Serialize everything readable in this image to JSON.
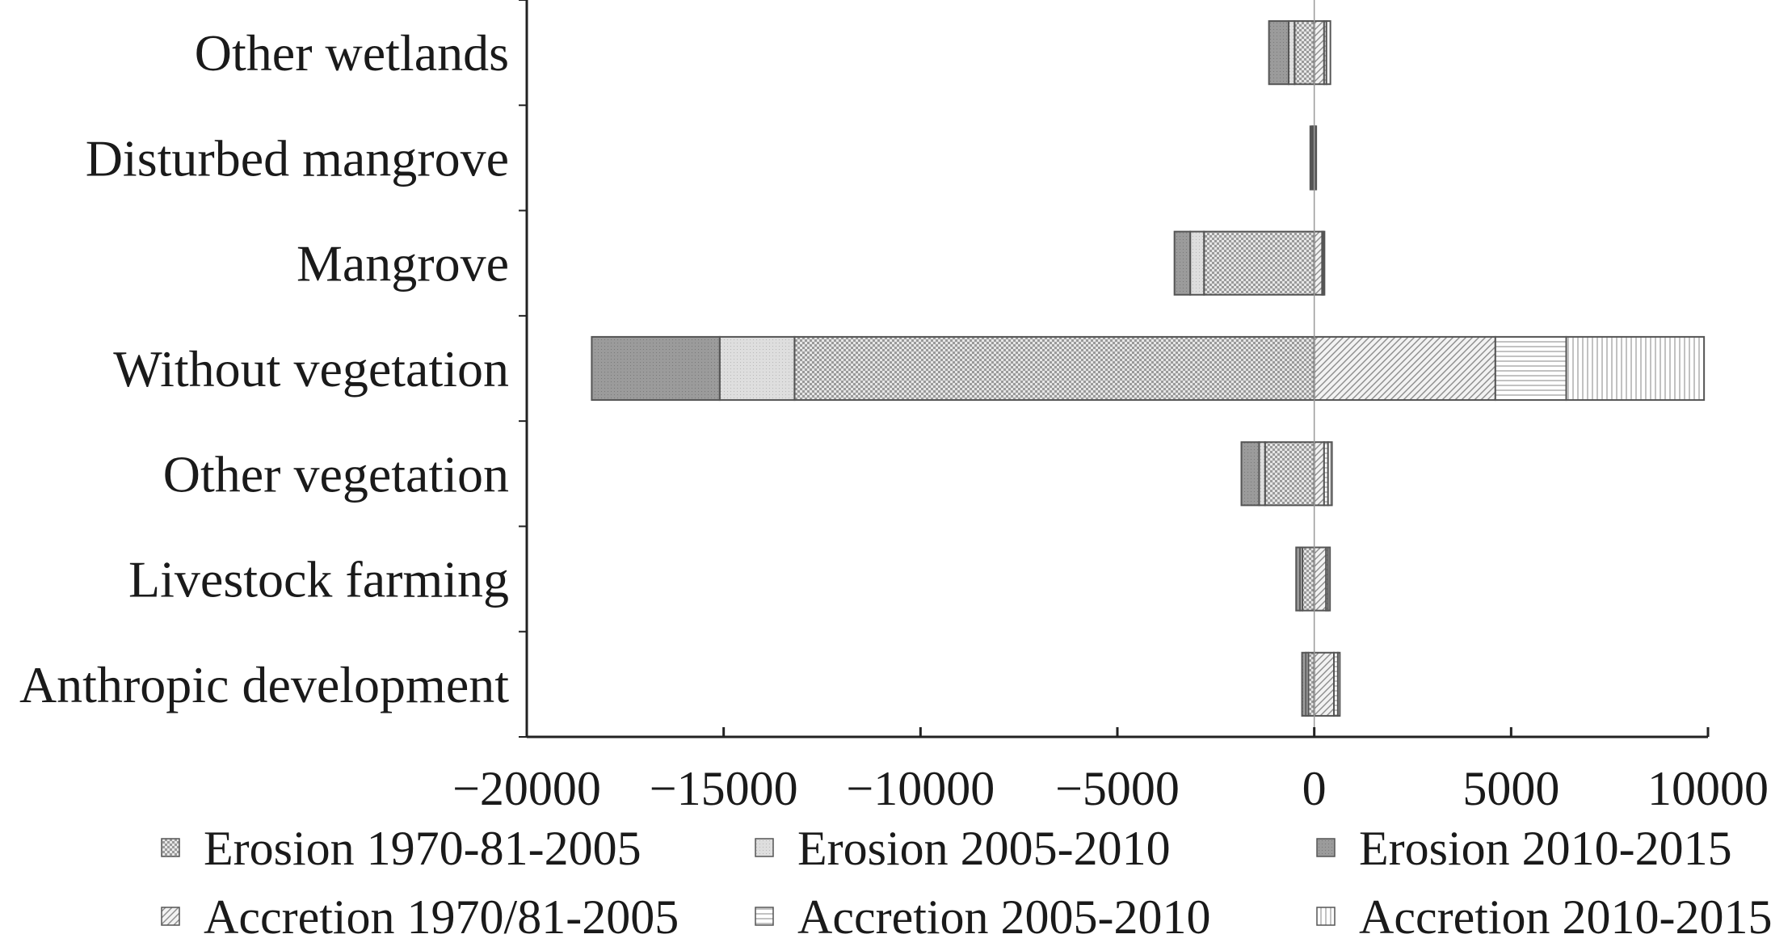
{
  "chart_data": {
    "type": "bar",
    "orientation": "horizontal",
    "stacked": true,
    "categories": [
      "Other wetlands",
      "Disturbed mangrove",
      "Mangrove",
      "Without vegetation",
      "Other vegetation",
      "Livestock farming",
      "Anthropic development"
    ],
    "xlim": [
      -20000,
      10000
    ],
    "xticks": [
      -20000,
      -15000,
      -10000,
      -5000,
      0,
      5000,
      10000
    ],
    "xtick_labels": [
      "−20000",
      "−15000",
      "−10000",
      "−5000",
      "0",
      "5000",
      "10000"
    ],
    "grid": false,
    "legend_position": "bottom",
    "series": [
      {
        "name": "Erosion 1970-81-2005",
        "pattern": "checker",
        "values": [
          -500,
          -40,
          -2800,
          -13200,
          -1250,
          -300,
          -150
        ]
      },
      {
        "name": "Erosion 2005-2010",
        "pattern": "light-gray",
        "values": [
          -150,
          -20,
          -350,
          -1900,
          -150,
          -60,
          -60
        ]
      },
      {
        "name": "Erosion 2010-2015",
        "pattern": "dark-gray",
        "values": [
          -500,
          -40,
          -400,
          -3250,
          -450,
          -100,
          -100
        ]
      },
      {
        "name": "Accretion 1970/81-2005",
        "pattern": "diagonal",
        "values": [
          250,
          20,
          200,
          4600,
          250,
          300,
          500
        ]
      },
      {
        "name": "Accretion 2005-2010",
        "pattern": "horizontal-lines",
        "values": [
          60,
          10,
          30,
          1800,
          100,
          50,
          100
        ]
      },
      {
        "name": "Accretion 2010-2015",
        "pattern": "vertical-lines",
        "values": [
          100,
          5,
          30,
          3500,
          100,
          50,
          50
        ]
      }
    ]
  }
}
